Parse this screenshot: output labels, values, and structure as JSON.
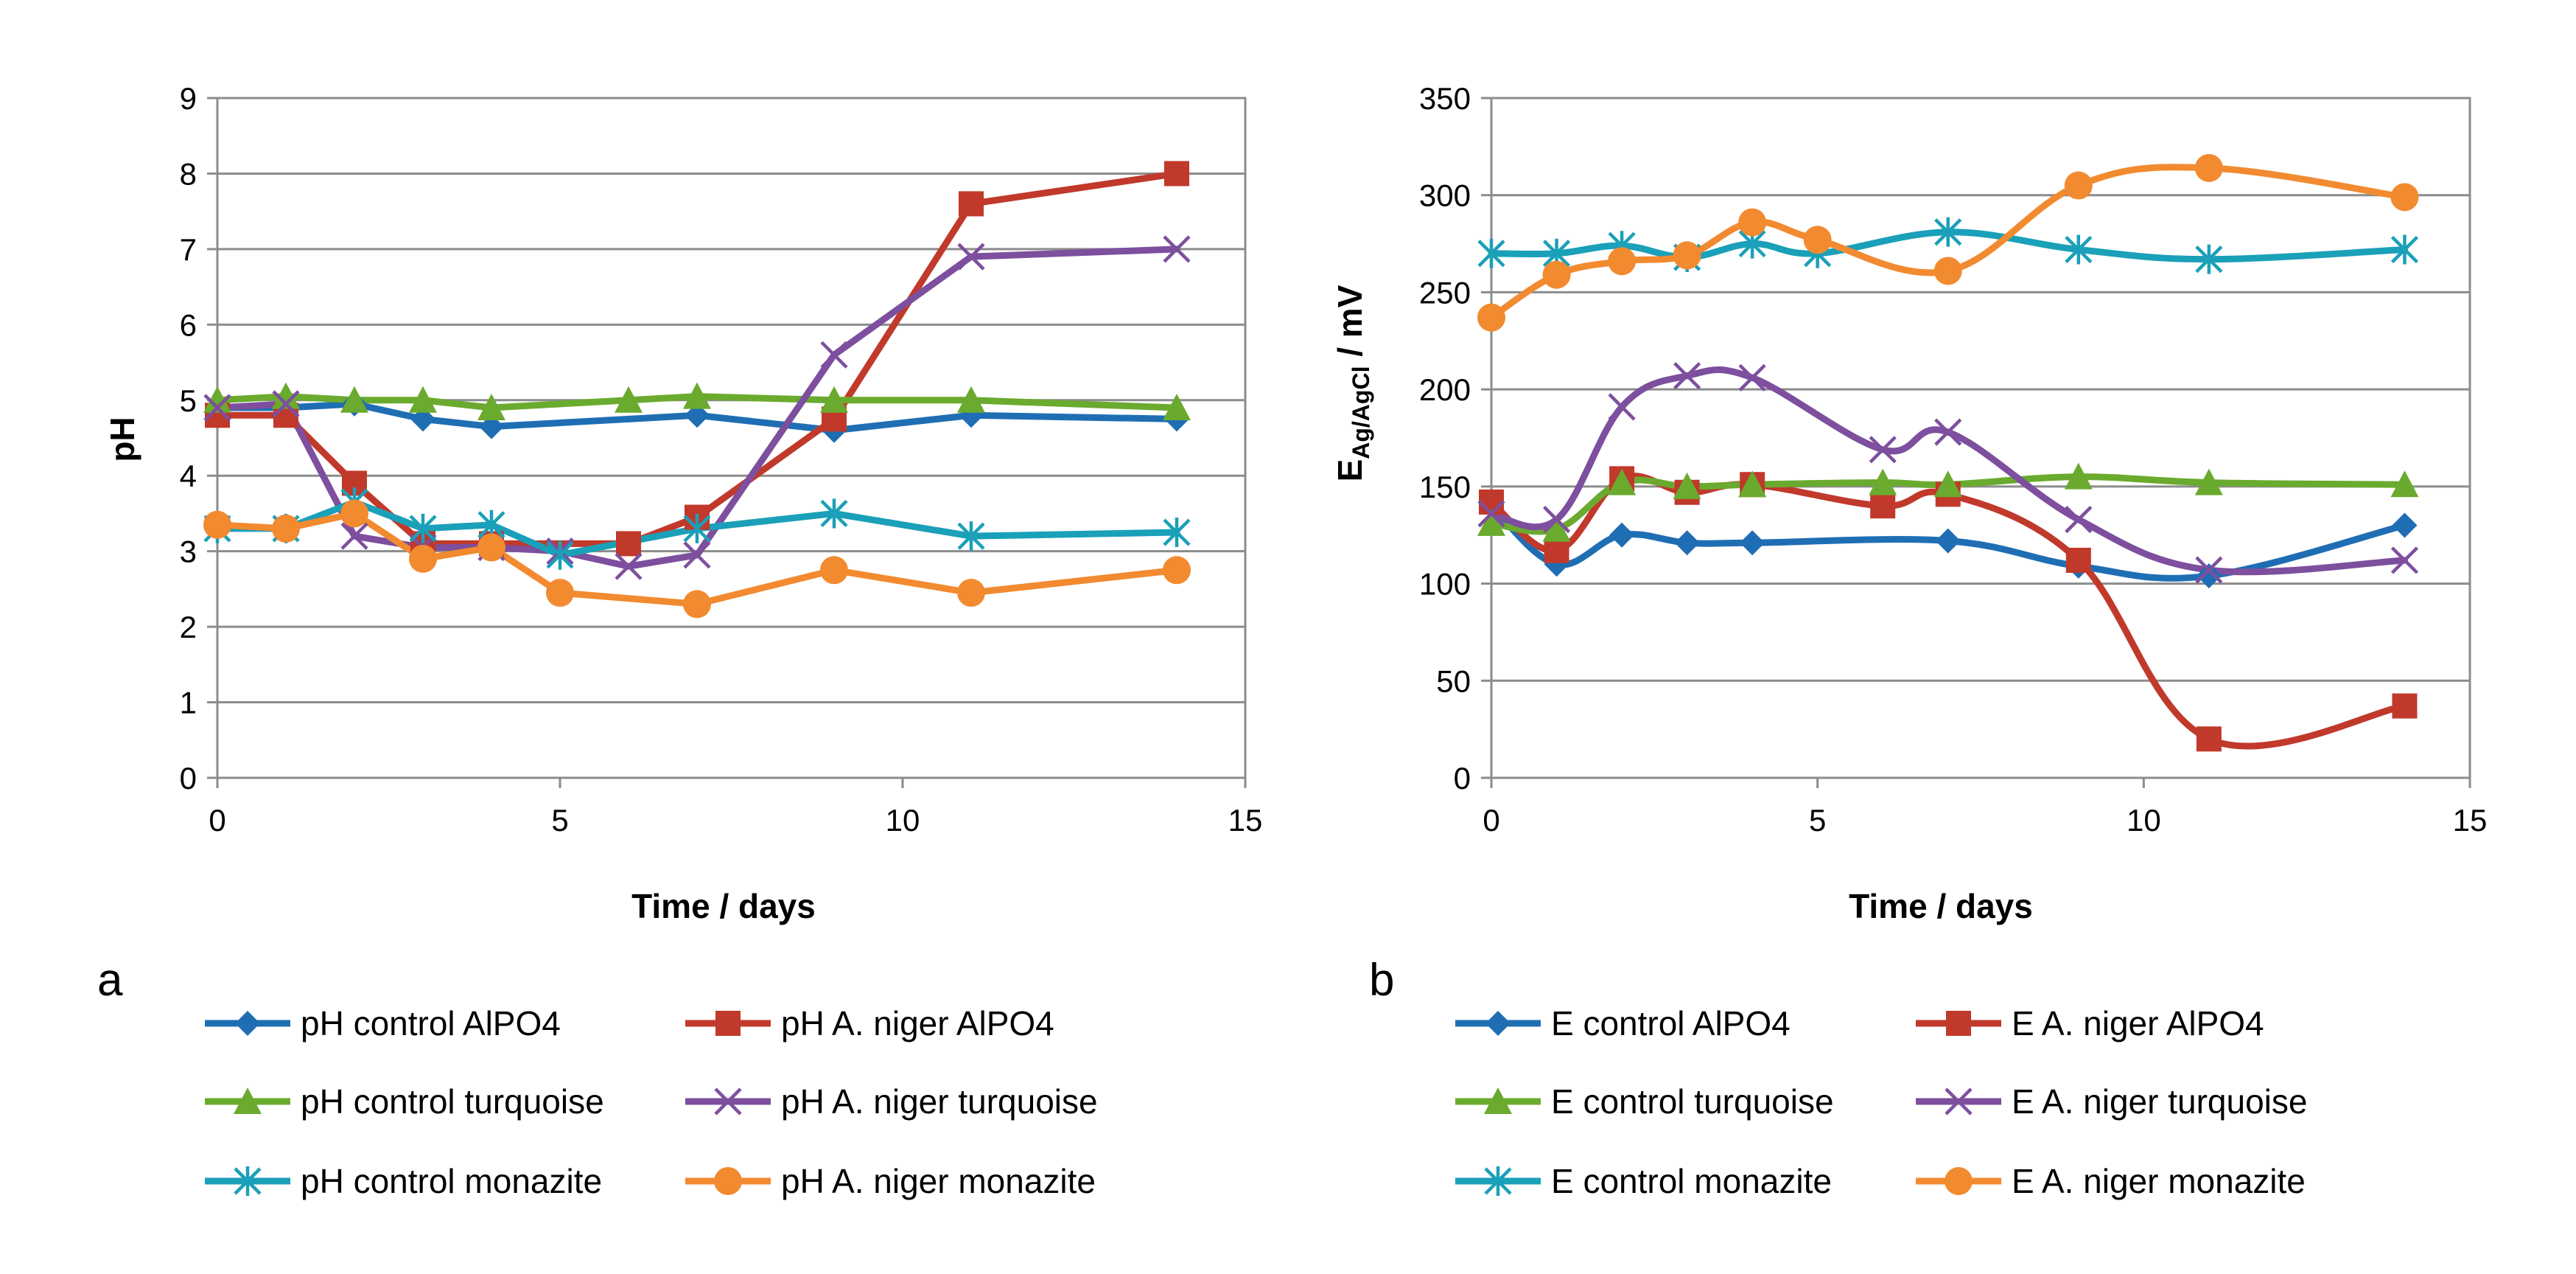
{
  "chart_data": [
    {
      "type": "line",
      "panel_label": "a",
      "title": "",
      "xlabel": "Time / days",
      "ylabel": "pH",
      "xlim": [
        0,
        15
      ],
      "ylim": [
        0,
        9
      ],
      "xticks": [
        0,
        5,
        10,
        15
      ],
      "yticks": [
        0,
        1,
        2,
        3,
        4,
        5,
        6,
        7,
        8,
        9
      ],
      "xtick_labels": [
        "0",
        "5",
        "10",
        "15"
      ],
      "ytick_labels": [
        "0",
        "1",
        "2",
        "3",
        "4",
        "5",
        "6",
        "7",
        "8",
        "9"
      ],
      "grid": true,
      "smooth": false,
      "legend_position": "bottom",
      "series": [
        {
          "name": "pH control AlPO4",
          "color": "#1F6EB4",
          "marker": "diamond",
          "x": [
            0,
            1,
            2,
            3,
            4,
            7,
            9,
            11,
            14
          ],
          "y": [
            4.9,
            4.9,
            4.95,
            4.75,
            4.65,
            4.8,
            4.6,
            4.8,
            4.75
          ]
        },
        {
          "name": "pH A. niger AlPO4",
          "color": "#C0392B",
          "marker": "square",
          "x": [
            0,
            1,
            2,
            3,
            4,
            6,
            7,
            9,
            11,
            14
          ],
          "y": [
            4.8,
            4.8,
            3.9,
            3.1,
            3.1,
            3.1,
            3.45,
            4.75,
            7.6,
            8.0
          ]
        },
        {
          "name": "pH control turquoise",
          "color": "#6AAA2E",
          "marker": "triangle",
          "x": [
            0,
            1,
            2,
            3,
            4,
            6,
            7,
            9,
            11,
            14
          ],
          "y": [
            5.0,
            5.05,
            5.0,
            5.0,
            4.9,
            5.0,
            5.05,
            5.0,
            5.0,
            4.9
          ]
        },
        {
          "name": "pH A. niger turquoise",
          "color": "#7D4F9E",
          "marker": "x",
          "x": [
            0,
            1,
            2,
            3,
            4,
            5,
            6,
            7,
            9,
            11,
            14
          ],
          "y": [
            4.9,
            4.95,
            3.2,
            3.05,
            3.05,
            3.0,
            2.8,
            2.95,
            5.6,
            6.9,
            7.0
          ]
        },
        {
          "name": "pH control monazite",
          "color": "#1AA0B8",
          "marker": "asterisk",
          "x": [
            0,
            1,
            2,
            3,
            4,
            5,
            7,
            9,
            11,
            14
          ],
          "y": [
            3.3,
            3.3,
            3.65,
            3.3,
            3.35,
            2.95,
            3.3,
            3.5,
            3.2,
            3.25
          ]
        },
        {
          "name": "pH A. niger monazite",
          "color": "#F28A30",
          "marker": "circle",
          "x": [
            0,
            1,
            2,
            3,
            4,
            5,
            7,
            9,
            11,
            14
          ],
          "y": [
            3.35,
            3.3,
            3.5,
            2.9,
            3.05,
            2.45,
            2.3,
            2.75,
            2.45,
            2.75
          ]
        }
      ]
    },
    {
      "type": "line",
      "panel_label": "b",
      "title": "",
      "xlabel": "Time / days",
      "ylabel": "E",
      "ylabel_subscript": "Ag/AgCl",
      "ylabel_suffix": " / mV",
      "xlim": [
        0,
        15
      ],
      "ylim": [
        0,
        350
      ],
      "xticks": [
        0,
        5,
        10,
        15
      ],
      "yticks": [
        0,
        50,
        100,
        150,
        200,
        250,
        300,
        350
      ],
      "xtick_labels": [
        "0",
        "5",
        "10",
        "15"
      ],
      "ytick_labels": [
        "0",
        "50",
        "100",
        "150",
        "200",
        "250",
        "300",
        "350"
      ],
      "grid": true,
      "smooth": true,
      "legend_position": "bottom",
      "series": [
        {
          "name": "E control AlPO4",
          "color": "#1F6EB4",
          "marker": "diamond",
          "x": [
            0,
            1,
            2,
            3,
            4,
            7,
            9,
            11,
            14
          ],
          "y": [
            140,
            110,
            125,
            121,
            121,
            122,
            109,
            104,
            130
          ]
        },
        {
          "name": "E A. niger AlPO4",
          "color": "#C0392B",
          "marker": "square",
          "x": [
            0,
            1,
            2,
            3,
            4,
            6,
            7,
            9,
            11,
            14
          ],
          "y": [
            142,
            117,
            154,
            147,
            151,
            140,
            146,
            112,
            20,
            37
          ]
        },
        {
          "name": "E control turquoise",
          "color": "#6AAA2E",
          "marker": "triangle",
          "x": [
            0,
            1,
            2,
            3,
            4,
            6,
            7,
            9,
            11,
            14
          ],
          "y": [
            131,
            128,
            152,
            150,
            151,
            152,
            151,
            155,
            152,
            151
          ]
        },
        {
          "name": "E A. niger turquoise",
          "color": "#7D4F9E",
          "marker": "x",
          "x": [
            0,
            1,
            2,
            3,
            4,
            6,
            7,
            9,
            11,
            14
          ],
          "y": [
            136,
            133,
            191,
            207,
            206,
            169,
            178,
            133,
            107,
            112
          ]
        },
        {
          "name": "E control monazite",
          "color": "#1AA0B8",
          "marker": "asterisk",
          "x": [
            0,
            1,
            2,
            3,
            4,
            5,
            7,
            9,
            11,
            14
          ],
          "y": [
            270,
            270,
            274,
            268,
            275,
            270,
            281,
            272,
            267,
            272
          ]
        },
        {
          "name": "E A. niger monazite",
          "color": "#F28A30",
          "marker": "circle",
          "x": [
            0,
            1,
            2,
            3,
            4,
            5,
            7,
            9,
            11,
            14
          ],
          "y": [
            237,
            259,
            266,
            269,
            286,
            277,
            261,
            305,
            314,
            299
          ]
        }
      ]
    }
  ]
}
